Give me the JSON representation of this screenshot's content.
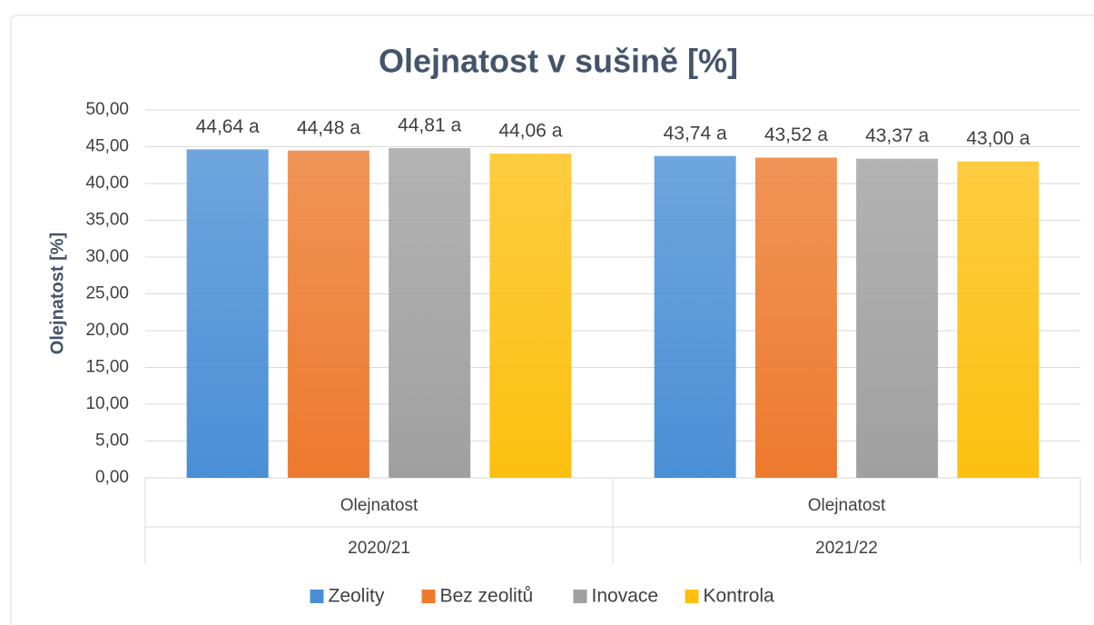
{
  "chart_data": {
    "type": "bar",
    "title": "Olejnatost v sušině [%]",
    "y_label": "Olejnatost [%]",
    "categories": [
      "Olejnatost",
      "Olejnatost"
    ],
    "category_groups": [
      "2020/21",
      "2021/22"
    ],
    "series": [
      {
        "name": "Zeolity",
        "color": "#4a8fd6",
        "values": [
          44.64,
          43.74
        ],
        "value_labels": [
          "44,64 a",
          "43,74 a"
        ]
      },
      {
        "name": "Bez zeolitů",
        "color": "#ed7a2e",
        "values": [
          44.48,
          43.52
        ],
        "value_labels": [
          "44,48 a",
          "43,52 a"
        ]
      },
      {
        "name": "Inovace",
        "color": "#a0a0a0",
        "values": [
          44.81,
          43.37
        ],
        "value_labels": [
          "44,81 a",
          "43,37 a"
        ]
      },
      {
        "name": "Kontrola",
        "color": "#fdc010",
        "values": [
          44.06,
          43.0
        ],
        "value_labels": [
          "44,06 a",
          "43,00 a"
        ]
      }
    ],
    "ylim": [
      0,
      50
    ],
    "yticks": [
      {
        "value": 0,
        "label": "0,00"
      },
      {
        "value": 5,
        "label": "5,00"
      },
      {
        "value": 10,
        "label": "10,00"
      },
      {
        "value": 15,
        "label": "15,00"
      },
      {
        "value": 20,
        "label": "20,00"
      },
      {
        "value": 25,
        "label": "25,00"
      },
      {
        "value": 30,
        "label": "30,00"
      },
      {
        "value": 35,
        "label": "35,00"
      },
      {
        "value": 40,
        "label": "40,00"
      },
      {
        "value": 45,
        "label": "45,00"
      },
      {
        "value": 50,
        "label": "50,00"
      }
    ],
    "grid": true,
    "legend": "bottom"
  }
}
